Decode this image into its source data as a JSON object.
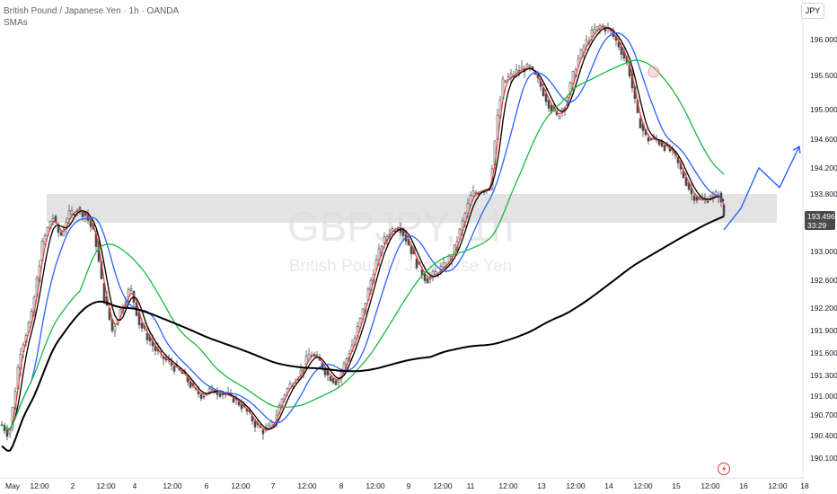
{
  "header": {
    "symbol_title": "British Pound / Japanese Yen · 1h · OANDA",
    "indicator_label": "SMAs",
    "currency_button": "JPY"
  },
  "watermark": {
    "ticker": "GBPJPY, 1h",
    "name": "British Pound / Japanese Yen"
  },
  "last_price": {
    "value": "193.496",
    "countdown": "33:29"
  },
  "bolt_icon": "lightning-icon",
  "colors": {
    "sma_fast": "#000000",
    "sma_mid": "#e53935",
    "sma_blue": "#2962ff",
    "sma_green": "#1ab940",
    "sma_long": "#000000",
    "zone": "#d9d9d9",
    "candle": "#4a4a4a",
    "projection": "#2962ff",
    "marker": "#f4a0a0"
  },
  "chart_data": {
    "type": "candlestick",
    "y_axis": {
      "ticks": [
        "196.000",
        "195.500",
        "195.000",
        "194.600",
        "194.200",
        "193.800",
        "193.000",
        "192.600",
        "192.200",
        "191.900",
        "191.600",
        "191.300",
        "191.000",
        "190.700",
        "190.400",
        "190.100"
      ],
      "range": [
        190.0,
        196.4
      ]
    },
    "x_axis": {
      "ticks": [
        "May",
        "12:00",
        "2",
        "12:00",
        "4",
        "12:00",
        "6",
        "12:00",
        "7",
        "12:00",
        "8",
        "12:00",
        "9",
        "12:00",
        "11",
        "12:00",
        "13",
        "12:00",
        "14",
        "12:00",
        "15",
        "12:00",
        "16",
        "12:00",
        "18"
      ]
    },
    "support_zone": {
      "low": 193.4,
      "high": 193.8
    },
    "price_points": [
      [
        0,
        190.6
      ],
      [
        10,
        190.4
      ],
      [
        22,
        191.6
      ],
      [
        35,
        192.1
      ],
      [
        47,
        193.1
      ],
      [
        58,
        193.5
      ],
      [
        67,
        193.2
      ],
      [
        76,
        193.5
      ],
      [
        86,
        193.6
      ],
      [
        96,
        193.5
      ],
      [
        106,
        193.2
      ],
      [
        115,
        192.4
      ],
      [
        125,
        191.9
      ],
      [
        135,
        192.2
      ],
      [
        145,
        192.5
      ],
      [
        155,
        192.0
      ],
      [
        165,
        191.8
      ],
      [
        175,
        191.6
      ],
      [
        185,
        191.5
      ],
      [
        195,
        191.4
      ],
      [
        205,
        191.3
      ],
      [
        215,
        191.1
      ],
      [
        225,
        191.0
      ],
      [
        235,
        191.1
      ],
      [
        245,
        191.05
      ],
      [
        255,
        191.0
      ],
      [
        265,
        190.9
      ],
      [
        275,
        190.75
      ],
      [
        285,
        190.55
      ],
      [
        295,
        190.45
      ],
      [
        305,
        190.6
      ],
      [
        315,
        191.0
      ],
      [
        325,
        191.2
      ],
      [
        335,
        191.35
      ],
      [
        345,
        191.6
      ],
      [
        355,
        191.5
      ],
      [
        365,
        191.3
      ],
      [
        375,
        191.2
      ],
      [
        385,
        191.5
      ],
      [
        395,
        191.8
      ],
      [
        405,
        192.2
      ],
      [
        415,
        192.7
      ],
      [
        425,
        193.1
      ],
      [
        435,
        193.3
      ],
      [
        445,
        193.35
      ],
      [
        455,
        193.1
      ],
      [
        465,
        192.8
      ],
      [
        475,
        192.6
      ],
      [
        485,
        192.7
      ],
      [
        495,
        192.8
      ],
      [
        505,
        193.0
      ],
      [
        515,
        193.4
      ],
      [
        525,
        193.8
      ],
      [
        535,
        193.85
      ],
      [
        545,
        193.9
      ],
      [
        553,
        194.8
      ],
      [
        560,
        195.4
      ],
      [
        570,
        195.5
      ],
      [
        580,
        195.6
      ],
      [
        590,
        195.6
      ],
      [
        600,
        195.4
      ],
      [
        610,
        195.1
      ],
      [
        620,
        194.9
      ],
      [
        630,
        195.1
      ],
      [
        640,
        195.6
      ],
      [
        650,
        195.9
      ],
      [
        660,
        196.1
      ],
      [
        670,
        196.2
      ],
      [
        680,
        196.1
      ],
      [
        690,
        195.9
      ],
      [
        700,
        195.6
      ],
      [
        710,
        194.9
      ],
      [
        720,
        194.6
      ],
      [
        730,
        194.6
      ],
      [
        740,
        194.5
      ],
      [
        750,
        194.4
      ],
      [
        760,
        194.1
      ],
      [
        770,
        193.8
      ],
      [
        780,
        193.7
      ],
      [
        790,
        193.75
      ],
      [
        800,
        193.8
      ],
      [
        806,
        193.5
      ]
    ],
    "projection_path": [
      [
        806,
        193.3
      ],
      [
        825,
        193.6
      ],
      [
        845,
        194.2
      ],
      [
        868,
        193.9
      ],
      [
        890,
        194.5
      ]
    ]
  }
}
